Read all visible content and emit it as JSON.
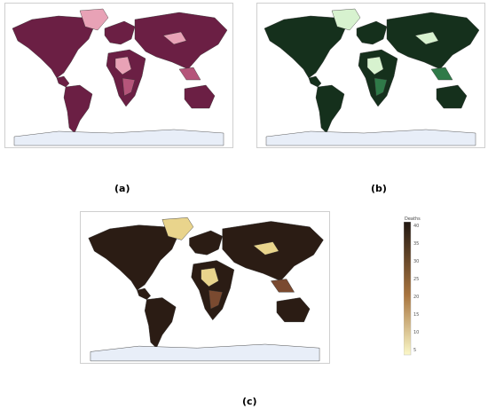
{
  "panels": [
    {
      "id": "a",
      "caption": "(a)",
      "land": "#6b1f44",
      "highlight": "#e8a2b6",
      "mid": "#b5557a",
      "nodata": "#dfe8f4",
      "ocean": "#ffffff",
      "antarctica": "#e8eef8"
    },
    {
      "id": "b",
      "caption": "(b)",
      "land": "#15301c",
      "highlight": "#d7f2cf",
      "mid": "#2f7a48",
      "nodata": "#dfe8f4",
      "ocean": "#ffffff",
      "antarctica": "#e8eef8"
    },
    {
      "id": "c",
      "caption": "(c)",
      "land": "#2b1c14",
      "highlight": "#e9d48c",
      "mid": "#7a4a30",
      "nodata": "#dfe8f4",
      "ocean": "#ffffff",
      "antarctica": "#e8eef8"
    }
  ],
  "legend": {
    "title": "Deaths",
    "ticks": [
      "40",
      "35",
      "30",
      "25",
      "20",
      "15",
      "10",
      "5"
    ],
    "color_top": "#221812",
    "color_mid": "#a8743e",
    "color_bottom": "#fbf8c8"
  }
}
